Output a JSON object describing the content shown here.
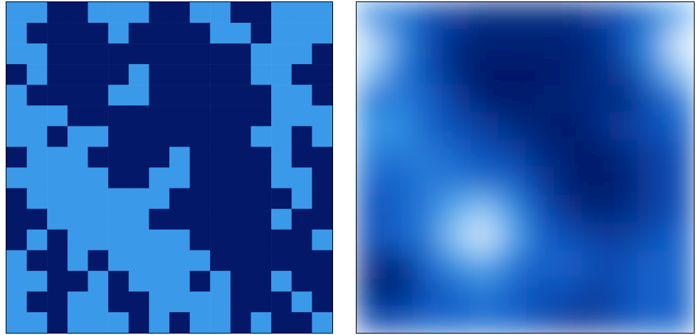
{
  "chart_data": [
    {
      "type": "heatmap",
      "tick_labels": false,
      "xlim": [
        0,
        16
      ],
      "ylim": [
        0,
        16
      ],
      "zlim": [
        0,
        1.6
      ],
      "cells": [
        [
          1,
          1,
          0,
          0,
          1,
          1,
          1,
          0,
          0,
          1,
          1,
          0,
          0,
          1,
          1,
          1
        ],
        [
          1,
          0,
          0,
          0,
          0,
          1,
          0,
          0,
          0,
          0,
          1,
          1,
          0,
          1,
          1,
          1
        ],
        [
          1,
          1,
          0,
          0,
          0,
          0,
          0,
          0,
          0,
          0,
          0,
          0,
          1,
          1,
          1,
          0
        ],
        [
          0,
          1,
          0,
          0,
          0,
          0,
          1,
          0,
          0,
          0,
          0,
          0,
          1,
          1,
          0,
          0
        ],
        [
          1,
          0,
          0,
          0,
          0,
          1,
          1,
          0,
          0,
          0,
          0,
          0,
          0,
          1,
          1,
          0
        ],
        [
          1,
          1,
          1,
          0,
          0,
          0,
          0,
          0,
          0,
          0,
          0,
          0,
          0,
          1,
          1,
          1
        ],
        [
          1,
          1,
          0,
          1,
          1,
          0,
          0,
          0,
          0,
          0,
          0,
          0,
          1,
          1,
          0,
          1
        ],
        [
          0,
          1,
          1,
          1,
          0,
          0,
          0,
          0,
          1,
          0,
          0,
          0,
          0,
          1,
          0,
          0
        ],
        [
          1,
          1,
          1,
          1,
          1,
          0,
          0,
          1,
          1,
          0,
          0,
          0,
          0,
          1,
          1,
          0
        ],
        [
          0,
          1,
          1,
          1,
          1,
          1,
          1,
          1,
          0,
          0,
          0,
          0,
          0,
          0,
          1,
          0
        ],
        [
          0,
          0,
          1,
          1,
          1,
          1,
          1,
          0,
          0,
          0,
          0,
          0,
          0,
          1,
          0,
          0
        ],
        [
          0,
          1,
          0,
          1,
          1,
          1,
          1,
          1,
          1,
          0,
          0,
          0,
          0,
          0,
          0,
          1
        ],
        [
          1,
          0,
          0,
          1,
          0,
          1,
          1,
          1,
          1,
          1,
          0,
          0,
          0,
          0,
          0,
          0
        ],
        [
          1,
          1,
          0,
          0,
          1,
          0,
          1,
          1,
          1,
          0,
          1,
          0,
          0,
          1,
          0,
          0
        ],
        [
          1,
          0,
          0,
          1,
          1,
          0,
          0,
          1,
          1,
          1,
          1,
          0,
          0,
          0,
          1,
          0
        ],
        [
          1,
          1,
          0,
          1,
          1,
          1,
          0,
          1,
          0,
          1,
          1,
          0,
          1,
          0,
          0,
          1
        ]
      ]
    },
    {
      "type": "heatmap",
      "tick_labels": false,
      "xlim": [
        0,
        12
      ],
      "ylim": [
        0,
        12
      ],
      "zlim": [
        0,
        1
      ],
      "cells": [
        [
          0.6,
          0.5,
          0.3,
          0.2,
          0.1,
          0.1,
          0.1,
          0.1,
          0.2,
          0.3,
          0.5,
          0.7
        ],
        [
          0.9,
          0.6,
          0.3,
          0.1,
          0.05,
          0.05,
          0.05,
          0.05,
          0.1,
          0.3,
          0.6,
          0.95
        ],
        [
          0.8,
          0.5,
          0.3,
          0.1,
          0,
          0,
          0,
          0.05,
          0.1,
          0.2,
          0.5,
          0.8
        ],
        [
          0.5,
          0.5,
          0.4,
          0.2,
          0.05,
          0,
          0.05,
          0.05,
          0.1,
          0.1,
          0.3,
          0.5
        ],
        [
          0.6,
          0.6,
          0.4,
          0.3,
          0.2,
          0.1,
          0.05,
          0,
          0.1,
          0.2,
          0.3,
          0.4
        ],
        [
          0.5,
          0.5,
          0.5,
          0.4,
          0.3,
          0.25,
          0.1,
          0.05,
          0,
          0.1,
          0.2,
          0.3
        ],
        [
          0.4,
          0.4,
          0.5,
          0.5,
          0.45,
          0.4,
          0.2,
          0.05,
          0,
          0.05,
          0.2,
          0.3
        ],
        [
          0.3,
          0.4,
          0.5,
          0.7,
          0.8,
          0.6,
          0.3,
          0.15,
          0.05,
          0.1,
          0.2,
          0.3
        ],
        [
          0.3,
          0.4,
          0.5,
          0.8,
          0.95,
          0.7,
          0.4,
          0.3,
          0.2,
          0.2,
          0.3,
          0.4
        ],
        [
          0.15,
          0.1,
          0.4,
          0.6,
          0.7,
          0.5,
          0.4,
          0.4,
          0.3,
          0.3,
          0.4,
          0.4
        ],
        [
          0.1,
          0.05,
          0.3,
          0.4,
          0.5,
          0.4,
          0.3,
          0.3,
          0.2,
          0.3,
          0.4,
          0.4
        ],
        [
          0.3,
          0.3,
          0.4,
          0.4,
          0.45,
          0.4,
          0.3,
          0.2,
          0.2,
          0.3,
          0.4,
          0.4
        ]
      ]
    }
  ]
}
